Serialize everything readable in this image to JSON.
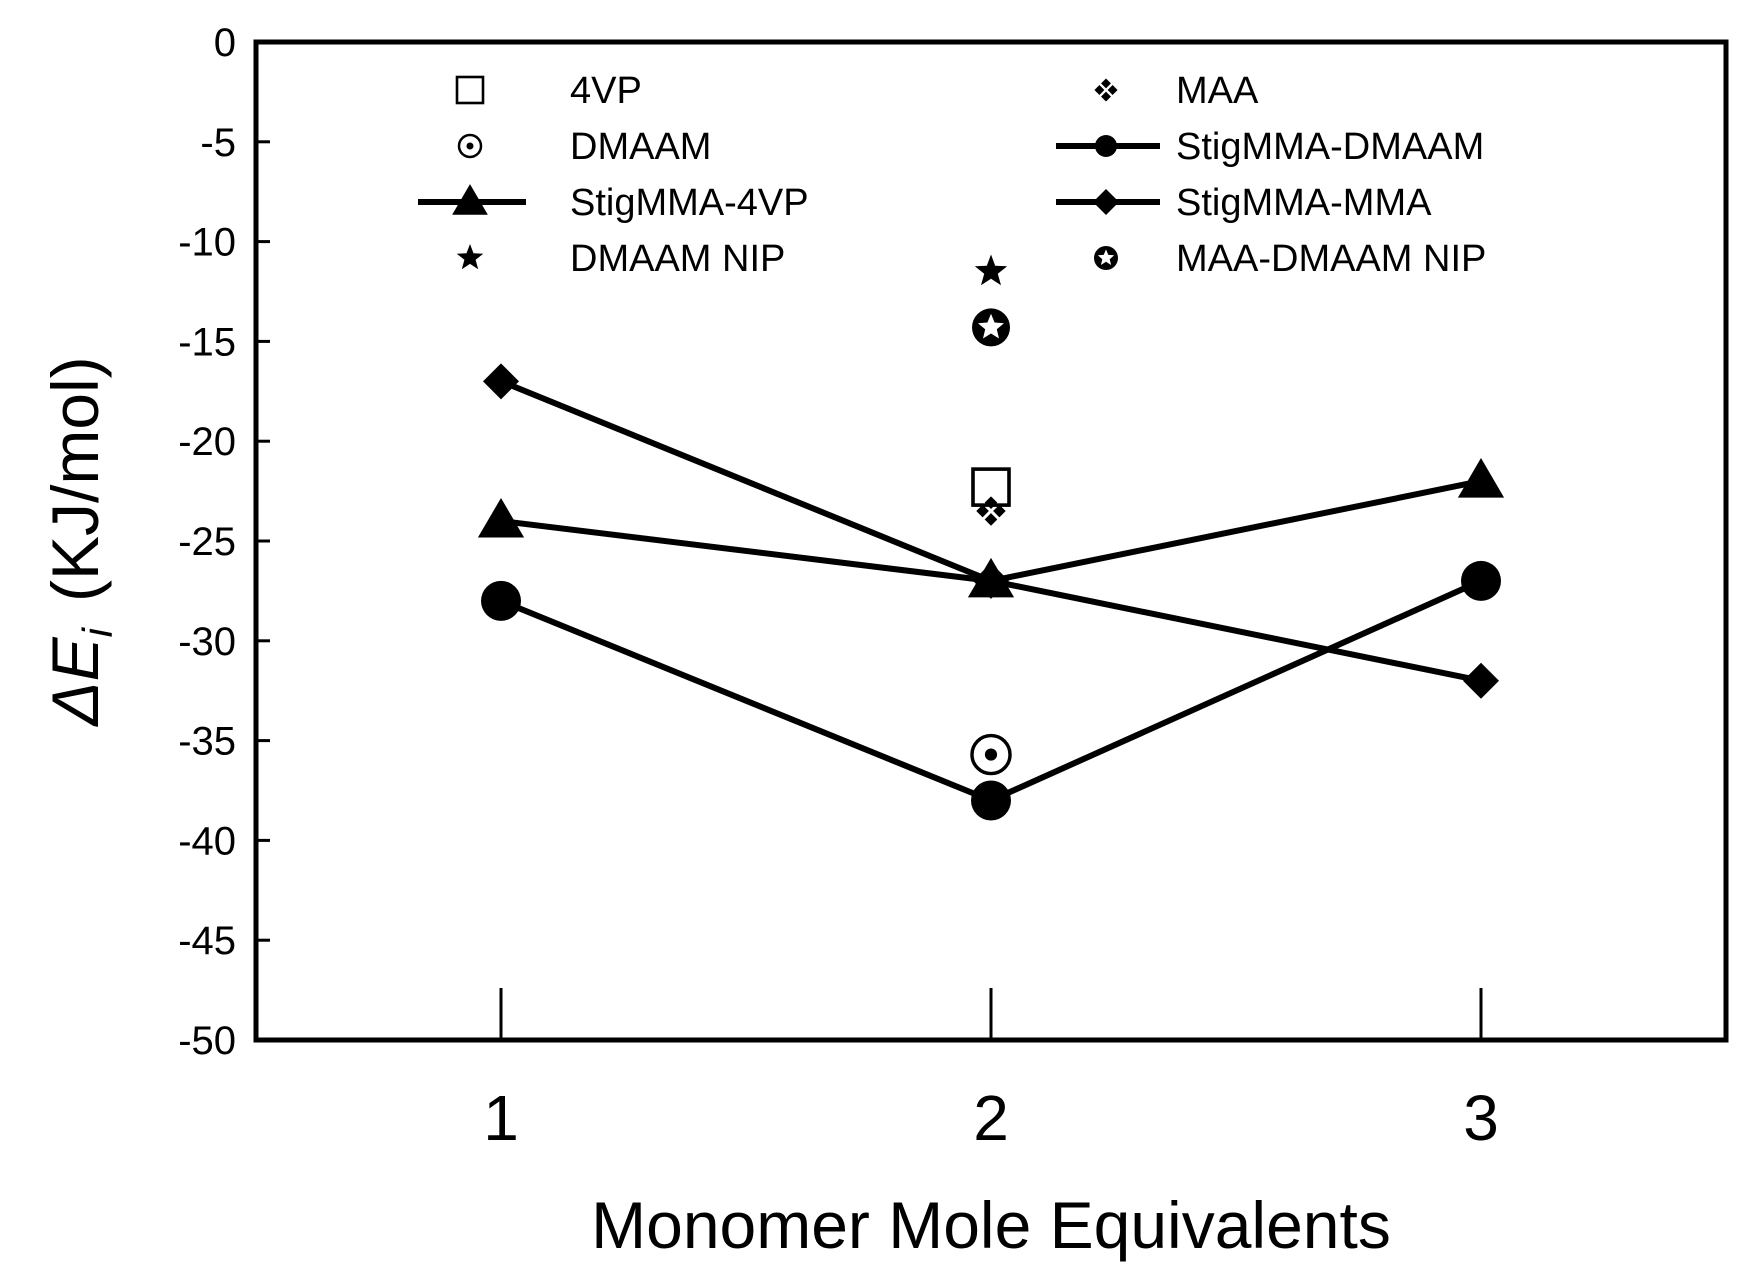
{
  "chart_data": {
    "type": "line",
    "xlabel": "Monomer Mole Equivalents",
    "ylabel_main": "ΔE",
    "ylabel_sub": "i",
    "ylabel_unit": "(KJ/mol)",
    "xlim": [
      0.5,
      3.5
    ],
    "ylim": [
      -50,
      0
    ],
    "x_ticks": [
      1,
      2,
      3
    ],
    "y_ticks": [
      0,
      -5,
      -10,
      -15,
      -20,
      -25,
      -30,
      -35,
      -40,
      -45,
      -50
    ],
    "grid": false,
    "legend_position": "top",
    "series": [
      {
        "name": "StigMMA-MMA",
        "marker": "diamond",
        "line": true,
        "x": [
          1,
          2,
          3
        ],
        "y": [
          -17,
          -27,
          -32
        ]
      },
      {
        "name": "StigMMA-4VP",
        "marker": "triangle",
        "line": true,
        "x": [
          1,
          2,
          3
        ],
        "y": [
          -24,
          -27,
          -22
        ]
      },
      {
        "name": "StigMMA-DMAAM",
        "marker": "circle",
        "line": true,
        "x": [
          1,
          2,
          3
        ],
        "y": [
          -28,
          -38,
          -27
        ]
      },
      {
        "name": "4VP",
        "marker": "square-open",
        "line": false,
        "x": [
          2
        ],
        "y": [
          -22.3
        ]
      },
      {
        "name": "MAA",
        "marker": "cross-diamond",
        "line": false,
        "x": [
          2
        ],
        "y": [
          -23.5
        ]
      },
      {
        "name": "DMAAM",
        "marker": "circle-dot",
        "line": false,
        "x": [
          2
        ],
        "y": [
          -35.7
        ]
      },
      {
        "name": "DMAAM NIP",
        "marker": "star",
        "line": false,
        "x": [
          2
        ],
        "y": [
          -11.5
        ]
      },
      {
        "name": "MAA-DMAAM NIP",
        "marker": "star-circle",
        "line": false,
        "x": [
          2
        ],
        "y": [
          -14.3
        ]
      }
    ],
    "legend": [
      {
        "label": "4VP",
        "marker": "square-open",
        "line": false
      },
      {
        "label": "MAA",
        "marker": "cross-diamond",
        "line": false
      },
      {
        "label": "DMAAM",
        "marker": "circle-dot",
        "line": false
      },
      {
        "label": "StigMMA-DMAAM",
        "marker": "circle",
        "line": true
      },
      {
        "label": "StigMMA-4VP",
        "marker": "triangle",
        "line": true
      },
      {
        "label": "StigMMA-MMA",
        "marker": "diamond",
        "line": true
      },
      {
        "label": "DMAAM NIP",
        "marker": "star",
        "line": false
      },
      {
        "label": "MAA-DMAAM NIP",
        "marker": "star-circle",
        "line": false
      }
    ]
  }
}
